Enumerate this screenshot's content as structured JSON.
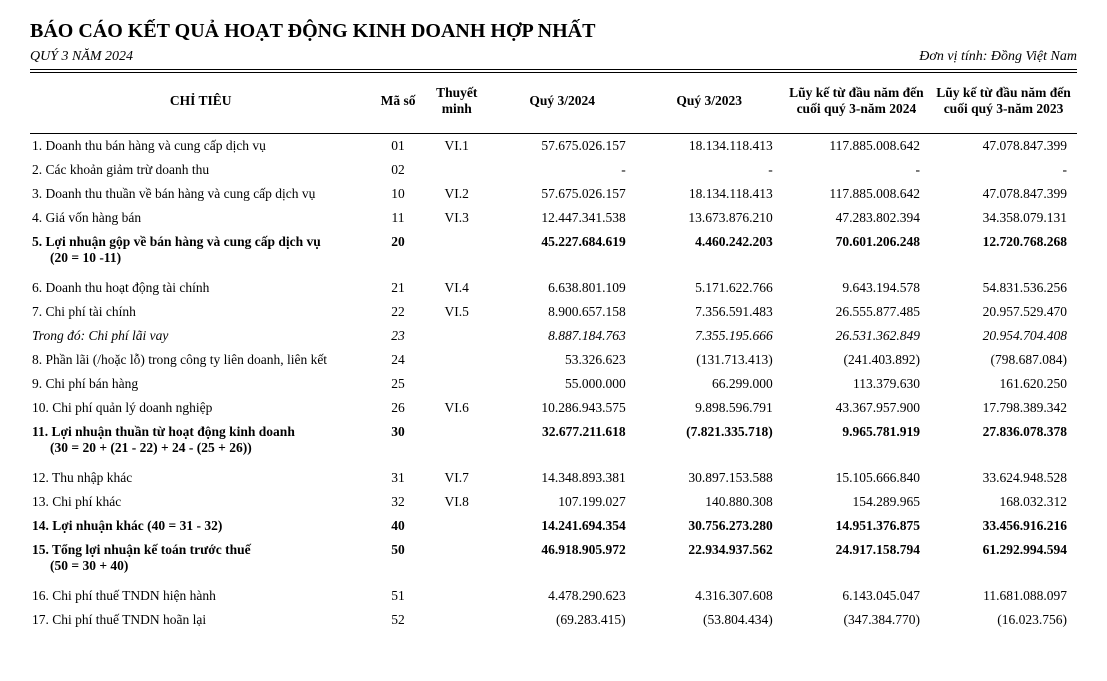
{
  "header": {
    "title": "BÁO CÁO KẾT QUẢ HOẠT ĐỘNG KINH DOANH HỢP NHẤT",
    "period": "QUÝ 3 NĂM 2024",
    "unit": "Đơn vị tính: Đồng Việt Nam"
  },
  "columns": {
    "indicator": "CHỈ TIÊU",
    "code": "Mã số",
    "note": "Thuyết minh",
    "q_current": "Quý 3/2024",
    "q_prior": "Quý 3/2023",
    "ytd_current": "Lũy kế từ đầu năm đến cuối quý 3-năm 2024",
    "ytd_prior": "Lũy kế từ đầu năm đến cuối quý 3-năm 2023"
  },
  "rows": [
    {
      "label": "1.  Doanh thu bán hàng và cung cấp dịch vụ",
      "code": "01",
      "note": "VI.1",
      "v1": "57.675.026.157",
      "v2": "18.134.118.413",
      "v3": "117.885.008.642",
      "v4": "47.078.847.399"
    },
    {
      "label": "2.  Các khoản giảm trừ doanh thu",
      "code": "02",
      "note": "",
      "v1": "-",
      "v2": "-",
      "v3": "-",
      "v4": "-"
    },
    {
      "label": "3.  Doanh thu thuần về bán hàng và cung cấp dịch vụ",
      "code": "10",
      "note": "VI.2",
      "v1": "57.675.026.157",
      "v2": "18.134.118.413",
      "v3": "117.885.008.642",
      "v4": "47.078.847.399"
    },
    {
      "label": "4.  Giá vốn hàng bán",
      "code": "11",
      "note": "VI.3",
      "v1": "12.447.341.538",
      "v2": "13.673.876.210",
      "v3": "47.283.802.394",
      "v4": "34.358.079.131"
    },
    {
      "label": "5.  Lợi nhuận gộp về bán hàng và cung cấp dịch vụ",
      "sub": "(20 = 10 -11)",
      "code": "20",
      "note": "",
      "v1": "45.227.684.619",
      "v2": "4.460.242.203",
      "v3": "70.601.206.248",
      "v4": "12.720.768.268",
      "bold": true
    },
    {
      "spacer": true
    },
    {
      "label": "6.  Doanh thu hoạt động tài chính",
      "code": "21",
      "note": "VI.4",
      "v1": "6.638.801.109",
      "v2": "5.171.622.766",
      "v3": "9.643.194.578",
      "v4": "54.831.536.256"
    },
    {
      "label": "7.  Chi phí tài chính",
      "code": "22",
      "note": "VI.5",
      "v1": "8.900.657.158",
      "v2": "7.356.591.483",
      "v3": "26.555.877.485",
      "v4": "20.957.529.470"
    },
    {
      "label": "Trong đó: Chi phí lãi vay",
      "code": "23",
      "note": "",
      "v1": "8.887.184.763",
      "v2": "7.355.195.666",
      "v3": "26.531.362.849",
      "v4": "20.954.704.408",
      "italic": true,
      "indent": true
    },
    {
      "label": "8.  Phần lãi (/hoặc lỗ) trong công ty liên doanh, liên kết",
      "code": "24",
      "note": "",
      "v1": "53.326.623",
      "v2": "(131.713.413)",
      "v3": "(241.403.892)",
      "v4": "(798.687.084)"
    },
    {
      "label": "9.  Chi phí bán hàng",
      "code": "25",
      "note": "",
      "v1": "55.000.000",
      "v2": "66.299.000",
      "v3": "113.379.630",
      "v4": "161.620.250"
    },
    {
      "label": "10. Chi phí quản lý doanh nghiệp",
      "code": "26",
      "note": "VI.6",
      "v1": "10.286.943.575",
      "v2": "9.898.596.791",
      "v3": "43.367.957.900",
      "v4": "17.798.389.342"
    },
    {
      "label": "11. Lợi nhuận thuần từ hoạt động kinh doanh",
      "sub": "(30 = 20 + (21 - 22) + 24 - (25 + 26))",
      "code": "30",
      "note": "",
      "v1": "32.677.211.618",
      "v2": "(7.821.335.718)",
      "v3": "9.965.781.919",
      "v4": "27.836.078.378",
      "bold": true
    },
    {
      "spacer": true
    },
    {
      "label": "12. Thu nhập khác",
      "code": "31",
      "note": "VI.7",
      "v1": "14.348.893.381",
      "v2": "30.897.153.588",
      "v3": "15.105.666.840",
      "v4": "33.624.948.528"
    },
    {
      "label": "13. Chi phí khác",
      "code": "32",
      "note": "VI.8",
      "v1": "107.199.027",
      "v2": "140.880.308",
      "v3": "154.289.965",
      "v4": "168.032.312"
    },
    {
      "label": "14. Lợi nhuận khác (40 = 31 - 32)",
      "code": "40",
      "note": "",
      "v1": "14.241.694.354",
      "v2": "30.756.273.280",
      "v3": "14.951.376.875",
      "v4": "33.456.916.216",
      "bold": true
    },
    {
      "label": "15. Tổng lợi nhuận kế toán trước thuế",
      "sub": "(50 = 30 + 40)",
      "code": "50",
      "note": "",
      "v1": "46.918.905.972",
      "v2": "22.934.937.562",
      "v3": "24.917.158.794",
      "v4": "61.292.994.594",
      "bold": true
    },
    {
      "spacer": true
    },
    {
      "label": "16. Chi phí thuế TNDN hiện hành",
      "code": "51",
      "note": "",
      "v1": "4.478.290.623",
      "v2": "4.316.307.608",
      "v3": "6.143.045.047",
      "v4": "11.681.088.097"
    },
    {
      "label": "17. Chi phí thuế TNDN hoãn lại",
      "code": "52",
      "note": "",
      "v1": "(69.283.415)",
      "v2": "(53.804.434)",
      "v3": "(347.384.770)",
      "v4": "(16.023.756)"
    }
  ]
}
